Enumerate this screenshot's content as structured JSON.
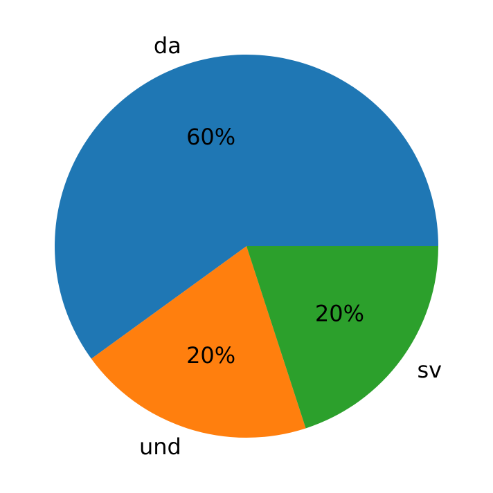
{
  "chart_data": {
    "type": "pie",
    "title": "",
    "slices": [
      {
        "label": "da",
        "value": 60,
        "pct_label": "60%",
        "color": "#1f77b4"
      },
      {
        "label": "und",
        "value": 20,
        "pct_label": "20%",
        "color": "#ff7f0e"
      },
      {
        "label": "sv",
        "value": 20,
        "pct_label": "20%",
        "color": "#2ca02c"
      }
    ],
    "start_angle_deg": 0,
    "direction": "counterclockwise",
    "legend": "none"
  }
}
